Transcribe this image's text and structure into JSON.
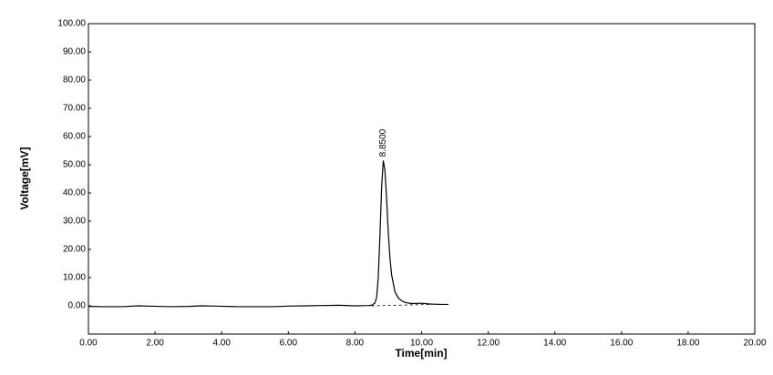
{
  "chart_data": {
    "type": "line",
    "xlabel": "Time[min]",
    "ylabel": "Voltage[mV]",
    "series": [
      {
        "color": "#000000",
        "x": [
          0,
          0.5,
          1.0,
          1.5,
          1.8,
          2.5,
          3.0,
          3.4,
          3.8,
          4.5,
          5.0,
          5.5,
          6.0,
          6.5,
          7.0,
          7.5,
          8.0,
          8.4,
          8.5,
          8.6,
          8.65,
          8.7,
          8.75,
          8.8,
          8.85,
          8.9,
          8.95,
          9.0,
          9.05,
          9.1,
          9.2,
          9.3,
          9.4,
          9.5,
          9.7,
          10.0,
          10.3,
          10.6,
          10.8
        ],
        "values": [
          -0.2,
          -0.3,
          -0.3,
          0,
          -0.1,
          -0.3,
          -0.2,
          0,
          -0.1,
          -0.3,
          -0.3,
          -0.3,
          -0.1,
          0,
          0.1,
          0.2,
          0,
          0.1,
          0.2,
          1,
          3,
          10,
          25,
          42,
          51.5,
          48,
          38,
          26,
          17,
          11,
          5,
          2.8,
          1.8,
          1.2,
          0.8,
          0.9,
          0.6,
          0.5,
          0.5
        ]
      }
    ],
    "baseline": {
      "x": [
        8.5,
        10.3
      ],
      "values": [
        0,
        0.5
      ]
    },
    "annotations": [
      {
        "text": "8.8500",
        "x": 8.85,
        "y": 51.5
      }
    ],
    "xlim": [
      0,
      20
    ],
    "ylim": [
      -10,
      100
    ],
    "xticks": [
      {
        "value": 0,
        "label": "0.00"
      },
      {
        "value": 2,
        "label": "2.00"
      },
      {
        "value": 4,
        "label": "4.00"
      },
      {
        "value": 6,
        "label": "6.00"
      },
      {
        "value": 8,
        "label": "8.00"
      },
      {
        "value": 10,
        "label": "10.00"
      },
      {
        "value": 12,
        "label": "12.00"
      },
      {
        "value": 14,
        "label": "14.00"
      },
      {
        "value": 16,
        "label": "16.00"
      },
      {
        "value": 18,
        "label": "18.00"
      },
      {
        "value": 20,
        "label": "20.00"
      }
    ],
    "yticks": [
      {
        "value": 0,
        "label": "0.00"
      },
      {
        "value": 10,
        "label": "10.00"
      },
      {
        "value": 20,
        "label": "20.00"
      },
      {
        "value": 30,
        "label": "30.00"
      },
      {
        "value": 40,
        "label": "40.00"
      },
      {
        "value": 50,
        "label": "50.00"
      },
      {
        "value": 60,
        "label": "60.00"
      },
      {
        "value": 70,
        "label": "70.00"
      },
      {
        "value": 80,
        "label": "80.00"
      },
      {
        "value": 90,
        "label": "90.00"
      },
      {
        "value": 100,
        "label": "100.00"
      }
    ],
    "grid": false
  }
}
